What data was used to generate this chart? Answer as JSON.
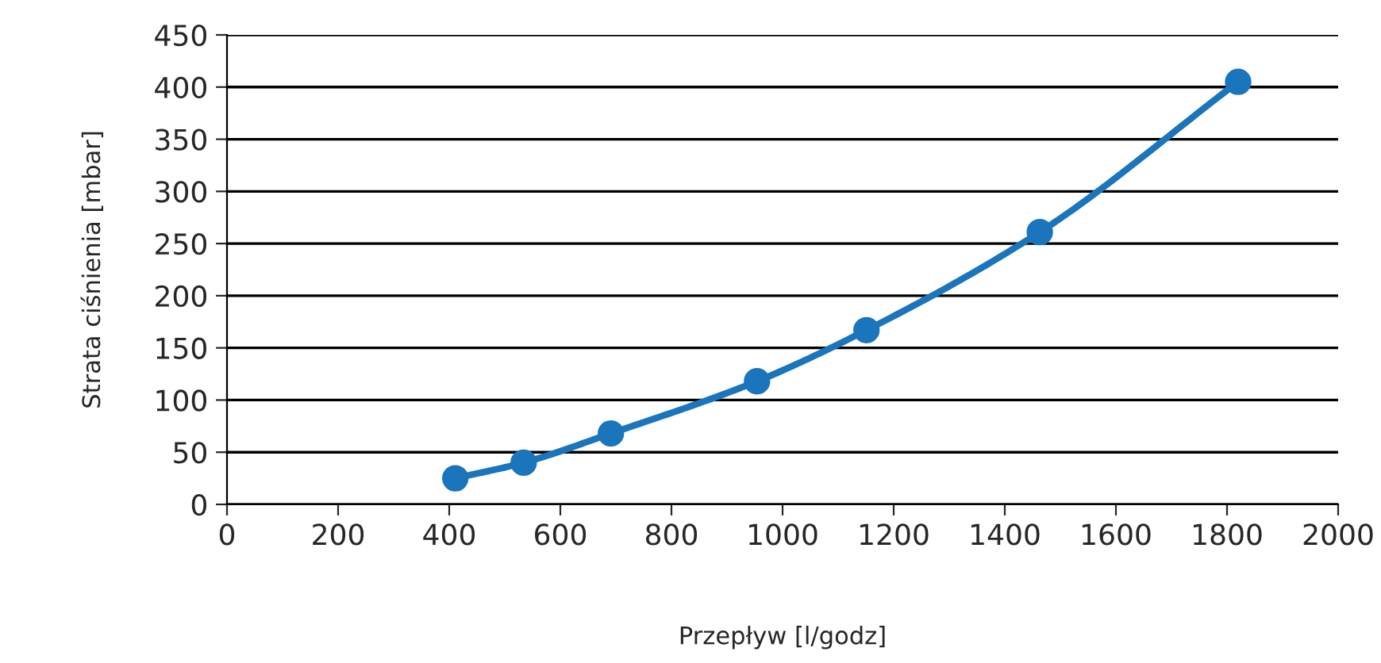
{
  "chart_data": {
    "type": "line",
    "xlabel": "Przepływ [l/godz]",
    "ylabel": "Strata ciśnienia [mbar]",
    "x": [
      411,
      534,
      691,
      954,
      1151,
      1463,
      1820
    ],
    "series": [
      {
        "color": "#1a75bc",
        "values": [
          25,
          40,
          68,
          118,
          167,
          261,
          405
        ]
      }
    ],
    "xlim": [
      0,
      2000
    ],
    "xticks": [
      0,
      200,
      400,
      600,
      800,
      1000,
      1200,
      1400,
      1600,
      1800,
      2000
    ],
    "ylim": [
      0,
      450
    ],
    "yticks": [
      0,
      50,
      100,
      150,
      200,
      250,
      300,
      350,
      400,
      450
    ],
    "grid": "y",
    "marker": "circle",
    "line_style": "solid",
    "legend": false
  }
}
